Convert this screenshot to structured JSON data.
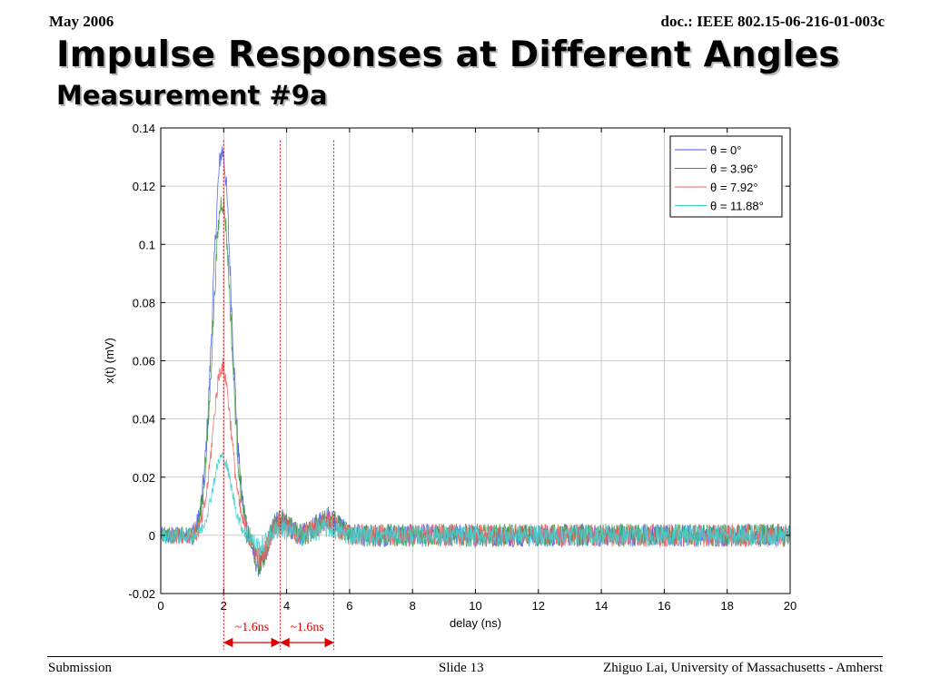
{
  "header": {
    "left": "May 2006",
    "right": "doc.: IEEE 802.15-06-216-01-003c"
  },
  "slide": {
    "title": "Impulse Responses at Different Angles",
    "subtitle": "Measurement #9a"
  },
  "footer": {
    "left": "Submission",
    "center": "Slide 13",
    "right": "Zhiguo Lai, University of Massachusetts - Amherst"
  },
  "chart_data": {
    "type": "line",
    "title": "",
    "xlabel": "delay (ns)",
    "ylabel": "x(t) (mV)",
    "xlim": [
      0,
      20
    ],
    "ylim": [
      -0.02,
      0.14
    ],
    "xticks": [
      0,
      2,
      4,
      6,
      8,
      10,
      12,
      14,
      16,
      18,
      20
    ],
    "yticks": [
      -0.02,
      0,
      0.02,
      0.04,
      0.06,
      0.08,
      0.1,
      0.12,
      0.14
    ],
    "grid": true,
    "legend": "top-right",
    "series": [
      {
        "name": "θ = 0°",
        "color": "#4a5cf0",
        "peak_x": 1.95,
        "peak_y": 0.132,
        "min_y": -0.011,
        "noise": 0.0025
      },
      {
        "name": "θ = 3.96°",
        "color": "#3a9a3a",
        "peak_x": 1.95,
        "peak_y": 0.115,
        "min_y": -0.01,
        "noise": 0.0025
      },
      {
        "name": "θ = 7.92°",
        "color": "#f06060",
        "peak_x": 1.95,
        "peak_y": 0.058,
        "min_y": -0.008,
        "noise": 0.0025
      },
      {
        "name": "θ = 11.88°",
        "color": "#40d0d0",
        "peak_x": 1.95,
        "peak_y": 0.027,
        "min_y": -0.004,
        "noise": 0.0022
      }
    ],
    "markers": [
      {
        "x": 2.0,
        "color": "#dd0000"
      },
      {
        "x": 3.8,
        "color": "#dd0000"
      },
      {
        "x": 5.5,
        "color": "#dd0000"
      }
    ],
    "annotations": [
      {
        "text": "~1.6ns",
        "from": 2.0,
        "to": 3.8
      },
      {
        "text": "~1.6ns",
        "from": 3.8,
        "to": 5.5
      }
    ]
  }
}
